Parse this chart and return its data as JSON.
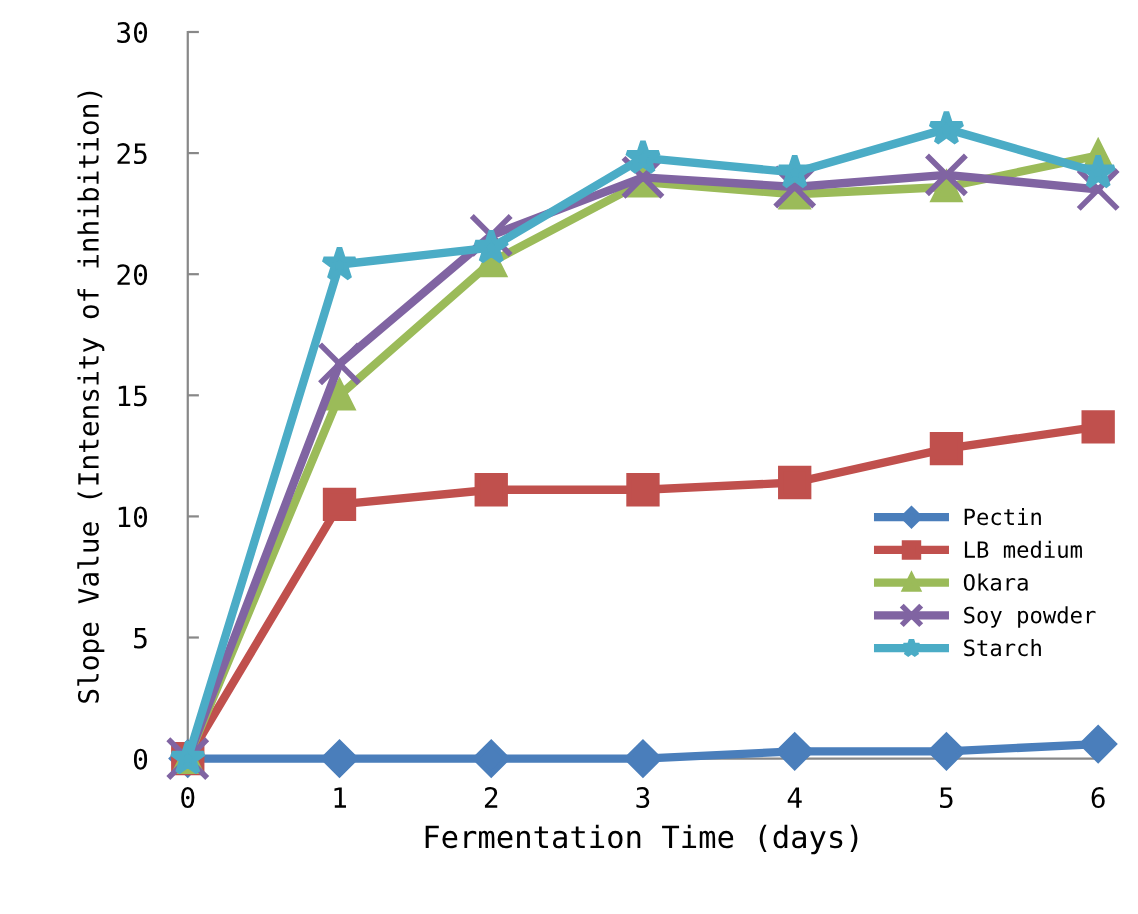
{
  "chart_data": {
    "type": "line",
    "xlabel": "Fermentation Time (days)",
    "ylabel": "Slope Value (Intensity of inhibition)",
    "x": [
      0,
      1,
      2,
      3,
      4,
      5,
      6
    ],
    "series": [
      {
        "name": "Pectin",
        "color": "#4a7ebb",
        "marker": "diamond",
        "values": [
          0,
          0,
          0,
          0,
          0.3,
          0.3,
          0.6
        ]
      },
      {
        "name": "LB medium",
        "color": "#c0504d",
        "marker": "square",
        "values": [
          0,
          10.5,
          11.1,
          11.1,
          11.4,
          12.8,
          13.7
        ]
      },
      {
        "name": "Okara",
        "color": "#9bbb59",
        "marker": "triangle",
        "values": [
          0,
          15,
          20.5,
          23.8,
          23.3,
          23.6,
          24.9
        ]
      },
      {
        "name": "Soy powder",
        "color": "#8064a2",
        "marker": "cross",
        "values": [
          0,
          16.3,
          21.6,
          24.0,
          23.6,
          24.1,
          23.5
        ]
      },
      {
        "name": "Starch",
        "color": "#4bacc6",
        "marker": "star",
        "values": [
          0,
          20.4,
          21.1,
          24.8,
          24.2,
          26.0,
          24.2
        ]
      }
    ],
    "xlim": [
      0,
      6
    ],
    "xticks": [
      0,
      1,
      2,
      3,
      4,
      5,
      6
    ],
    "ylim": [
      0,
      30
    ],
    "yticks": [
      0,
      5,
      10,
      15,
      20,
      25,
      30
    ],
    "grid": false,
    "legend": "right"
  }
}
